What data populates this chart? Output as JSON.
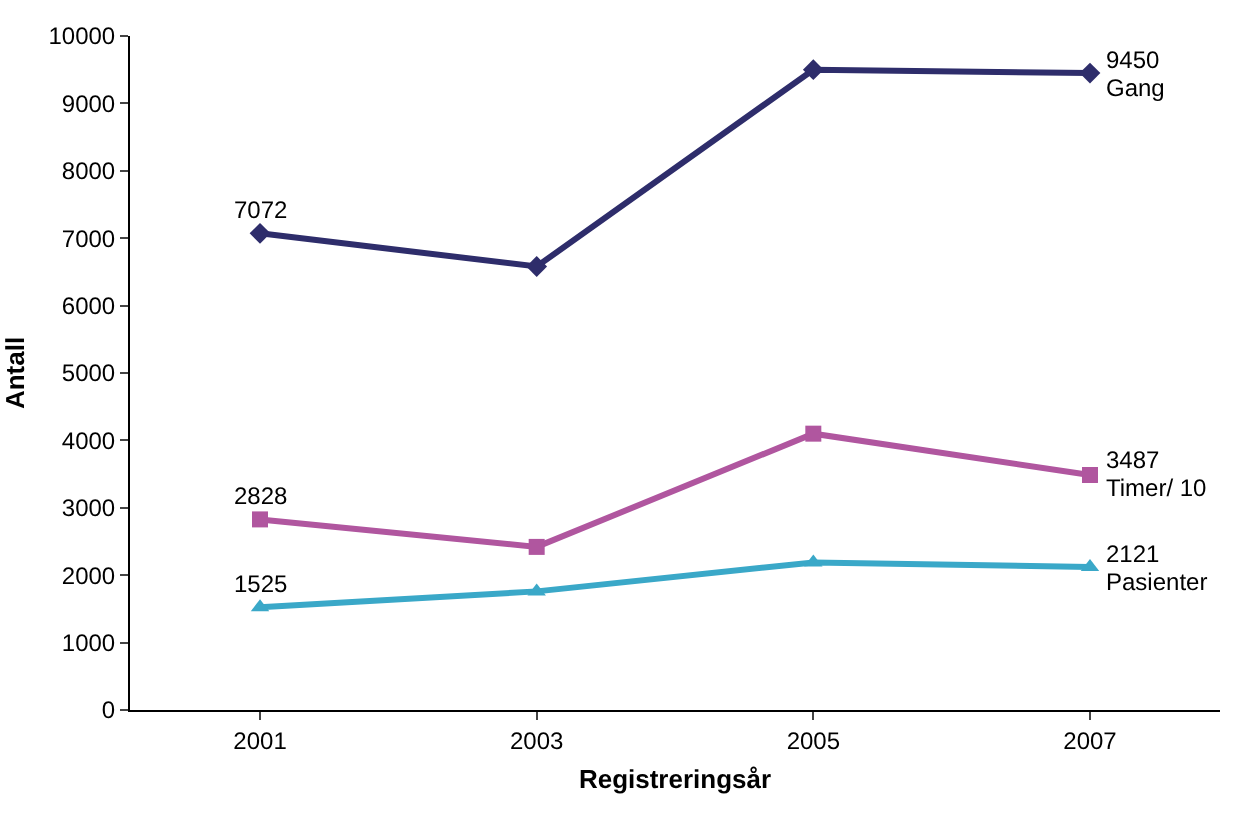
{
  "chart_data": {
    "type": "line",
    "xlabel": "Registreringsår",
    "ylabel": "Antall",
    "categories": [
      "2001",
      "2003",
      "2005",
      "2007"
    ],
    "series": [
      {
        "name": "Gang",
        "color": "#2e2d6b",
        "marker": "diamond",
        "values": [
          7072,
          6580,
          9500,
          9450
        ],
        "value_labels": [
          "7072",
          null,
          null,
          "9450"
        ]
      },
      {
        "name": "Timer/ 10",
        "color": "#b0569f",
        "marker": "square",
        "values": [
          2828,
          2420,
          4100,
          3487
        ],
        "value_labels": [
          "2828",
          null,
          null,
          "3487"
        ]
      },
      {
        "name": "Pasienter",
        "color": "#3aa8c8",
        "marker": "triangle",
        "values": [
          1525,
          1760,
          2190,
          2121
        ],
        "value_labels": [
          "1525",
          null,
          null,
          "2121"
        ]
      }
    ],
    "ylim": [
      0,
      10000
    ],
    "yticks": [
      0,
      1000,
      2000,
      3000,
      4000,
      5000,
      6000,
      7000,
      8000,
      9000,
      10000
    ],
    "grid": false,
    "legend": false,
    "line_style": "solid"
  }
}
